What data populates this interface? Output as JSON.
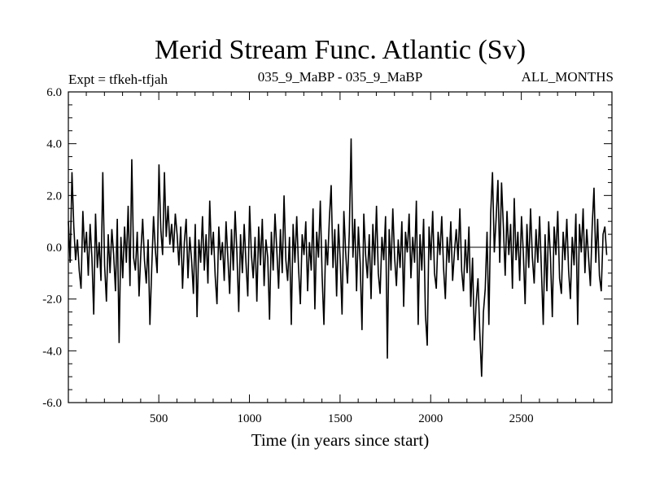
{
  "chart_data": {
    "type": "line",
    "title": "Merid Stream Func. Atlantic (Sv)",
    "subtitle_left": "Expt = tfkeh-tfjah",
    "subtitle_center": "035_9_MaBP - 035_9_MaBP",
    "subtitle_right": "ALL_MONTHS",
    "xlabel": "Time (in years since start)",
    "ylabel": "",
    "xlim": [
      1,
      3000
    ],
    "ylim": [
      -6,
      6
    ],
    "x_ticks": [
      500,
      1000,
      1500,
      2000,
      2500
    ],
    "x_tick_labels": [
      "500",
      "1000",
      "1500",
      "2000",
      "2500"
    ],
    "y_ticks": [
      6,
      4,
      2,
      0,
      -2,
      -4,
      -6
    ],
    "y_tick_labels": [
      "6.0",
      "4.0",
      "2.0",
      "0.0",
      "-2.0",
      "-4.0",
      "-6.0"
    ],
    "zero_line": true,
    "grid": false,
    "line_color": "#000000",
    "series": [
      {
        "x_start": 1,
        "x_step": 10,
        "values": [
          1.0,
          -0.6,
          2.9,
          0.8,
          -0.5,
          0.3,
          -0.9,
          -1.6,
          1.4,
          -0.2,
          0.6,
          -1.1,
          0.9,
          -0.4,
          -2.6,
          1.3,
          -0.8,
          0.2,
          -1.3,
          2.9,
          -0.7,
          -2.1,
          0.5,
          -1.0,
          0.7,
          -0.3,
          -1.7,
          1.1,
          -3.7,
          0.4,
          -1.2,
          0.8,
          -0.6,
          1.6,
          -1.5,
          3.4,
          -0.4,
          -0.9,
          0.6,
          -1.9,
          -0.2,
          1.1,
          -0.5,
          -1.4,
          0.3,
          -3.0,
          -0.8,
          1.2,
          -0.1,
          -1.0,
          3.2,
          0.7,
          -0.3,
          2.9,
          0.4,
          1.6,
          0.1,
          0.9,
          -0.2,
          1.3,
          0.5,
          -0.7,
          0.8,
          -1.6,
          0.2,
          1.1,
          -1.2,
          0.4,
          -0.5,
          -1.8,
          0.9,
          -2.7,
          0.3,
          -0.6,
          1.2,
          -0.9,
          0.5,
          -1.4,
          1.8,
          -0.3,
          0.6,
          -1.1,
          -2.2,
          0.8,
          -0.5,
          0.2,
          -1.3,
          1.0,
          -0.4,
          -1.8,
          0.7,
          -0.9,
          1.4,
          -0.2,
          -2.5,
          0.5,
          -1.0,
          0.9,
          -0.6,
          -1.9,
          1.6,
          -0.3,
          -1.2,
          0.4,
          -2.1,
          0.8,
          -0.7,
          1.1,
          -1.5,
          0.3,
          -0.4,
          -2.8,
          0.6,
          -0.9,
          1.3,
          -0.1,
          -1.6,
          0.7,
          -1.0,
          2.0,
          -0.5,
          -1.3,
          0.4,
          -3.0,
          0.9,
          -0.6,
          1.2,
          -0.8,
          -2.2,
          0.5,
          -0.3,
          1.0,
          -1.7,
          0.2,
          -0.9,
          1.5,
          -2.4,
          0.6,
          -0.4,
          1.8,
          -1.1,
          -3.0,
          0.3,
          -0.7,
          1.1,
          2.4,
          -0.8,
          0.7,
          -1.9,
          0.9,
          -0.5,
          -2.6,
          1.4,
          -0.2,
          -1.4,
          0.6,
          4.2,
          -0.4,
          1.1,
          -1.7,
          0.8,
          -0.6,
          -3.2,
          1.3,
          -0.3,
          -1.2,
          0.5,
          -2.0,
          0.9,
          -0.7,
          1.6,
          -1.0,
          -1.8,
          0.4,
          -0.5,
          1.2,
          -4.3,
          0.7,
          -0.9,
          1.5,
          -0.4,
          -1.5,
          0.3,
          -0.8,
          1.0,
          -2.3,
          0.6,
          -0.2,
          1.3,
          -1.2,
          0.4,
          -0.6,
          1.8,
          -3.0,
          0.5,
          -0.9,
          1.1,
          -2.6,
          -3.8,
          0.8,
          -0.5,
          1.4,
          -1.0,
          -1.6,
          0.6,
          -0.3,
          1.2,
          -0.8,
          -2.0,
          0.4,
          -0.6,
          1.0,
          -1.3,
          -0.2,
          0.7,
          -0.5,
          1.5,
          -0.9,
          -1.7,
          0.3,
          -1.0,
          0.8,
          -2.3,
          -0.4,
          -3.6,
          -2.1,
          -1.2,
          -3.3,
          -5.0,
          -2.5,
          -1.6,
          0.6,
          -3.0,
          1.3,
          2.9,
          -0.2,
          1.1,
          2.6,
          -0.6,
          2.5,
          0.8,
          -1.1,
          1.4,
          -0.3,
          0.9,
          -1.6,
          1.9,
          -0.5,
          0.6,
          -1.3,
          1.2,
          -0.2,
          -2.2,
          0.9,
          -0.8,
          1.5,
          -0.4,
          -1.4,
          0.7,
          -0.6,
          1.2,
          -0.9,
          -3.0,
          0.5,
          -1.7,
          1.0,
          -0.4,
          -2.7,
          0.8,
          -0.3,
          1.4,
          -1.2,
          -1.8,
          0.6,
          -0.5,
          1.1,
          -0.9,
          -2.0,
          0.4,
          -0.7,
          1.3,
          -3.0,
          0.9,
          -0.2,
          1.5,
          -1.0,
          0.7,
          -0.4,
          -1.5,
          0.8,
          2.3,
          -0.6,
          1.1,
          -1.1,
          -1.7,
          0.5,
          0.8,
          -0.3
        ]
      }
    ]
  }
}
